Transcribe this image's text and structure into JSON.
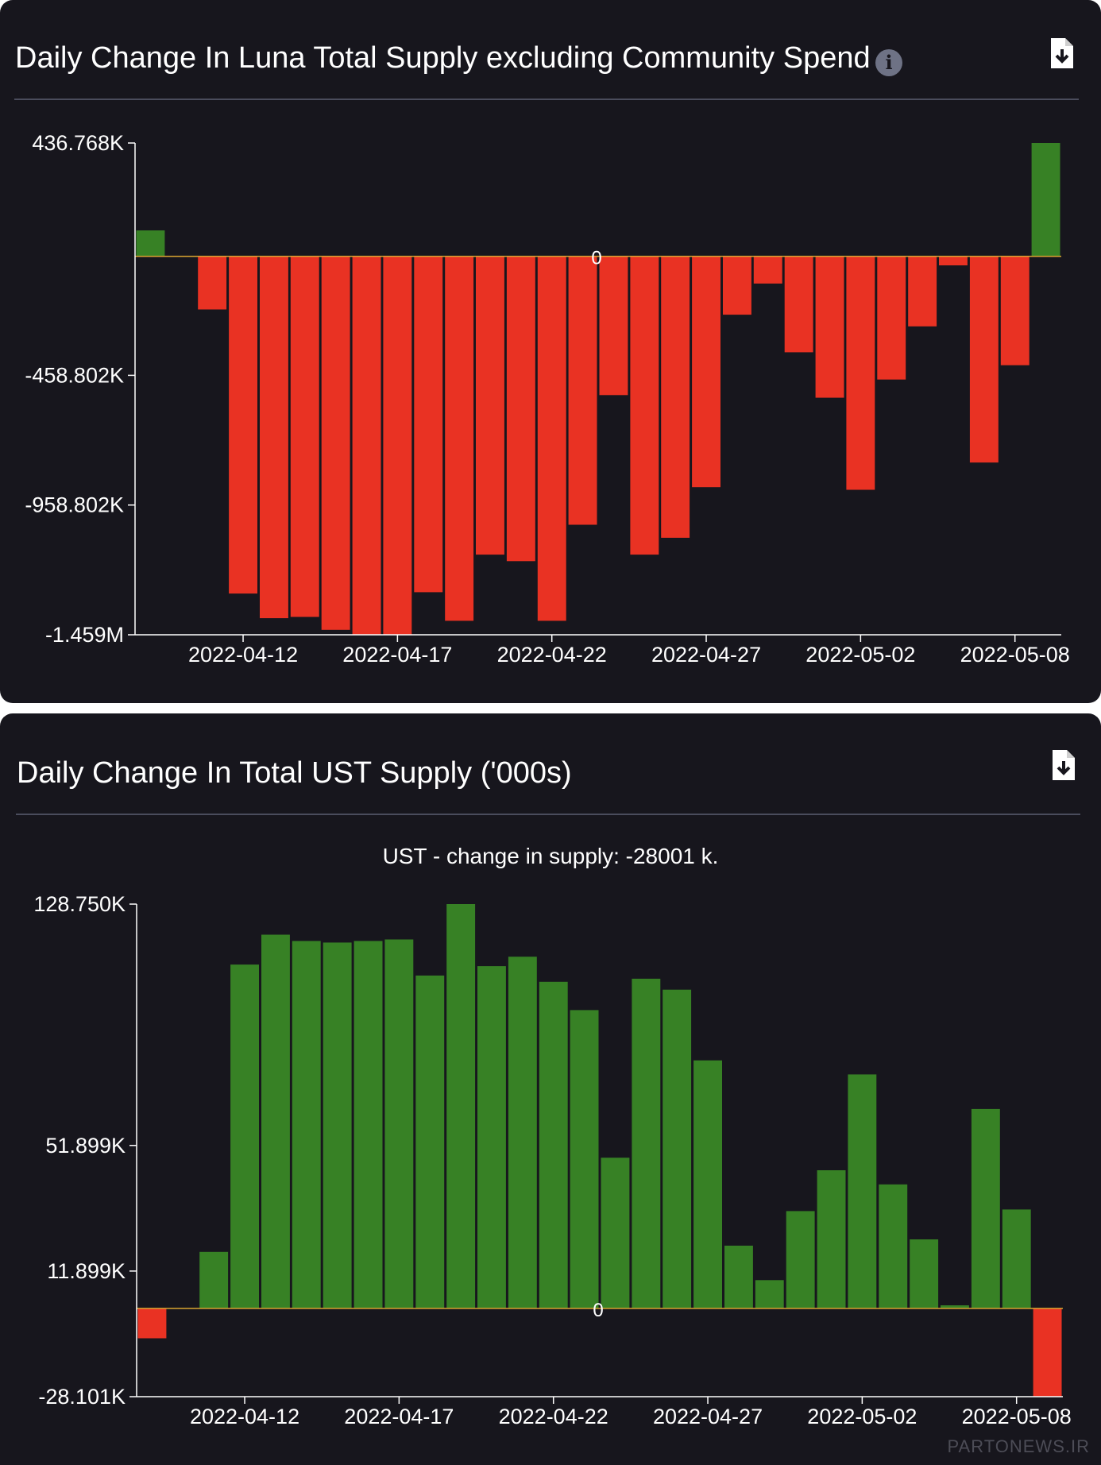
{
  "chart_data": [
    {
      "type": "bar",
      "title": "Daily Change In Luna Total Supply excluding Community Spend",
      "ylim": [
        -1459000,
        436768
      ],
      "y_ticks": [
        436768,
        -458802,
        -958802,
        -1459000
      ],
      "y_tick_labels": [
        "436.768K",
        "-458.802K",
        "-958.802K",
        "-1.459M"
      ],
      "zero_label": "0",
      "x_ticks": [
        "2022-04-12",
        "2022-04-17",
        "2022-04-22",
        "2022-04-27",
        "2022-05-02",
        "2022-05-08"
      ],
      "x_tick_index": [
        3.5,
        8.5,
        13.5,
        18.5,
        23.5,
        28.5
      ],
      "x": [
        "2022-04-09",
        "2022-04-10",
        "2022-04-11",
        "2022-04-12",
        "2022-04-13",
        "2022-04-14",
        "2022-04-15",
        "2022-04-16",
        "2022-04-17",
        "2022-04-18",
        "2022-04-19",
        "2022-04-20",
        "2022-04-21",
        "2022-04-22",
        "2022-04-23",
        "2022-04-24",
        "2022-04-25",
        "2022-04-26",
        "2022-04-27",
        "2022-04-28",
        "2022-04-29",
        "2022-04-30",
        "2022-05-01",
        "2022-05-02",
        "2022-05-03",
        "2022-05-04",
        "2022-05-05",
        "2022-05-06",
        "2022-05-07",
        "2022-05-08"
      ],
      "values": [
        100000,
        0,
        -205000,
        -1300000,
        -1395000,
        -1390000,
        -1440000,
        -1460000,
        -1460000,
        -1295000,
        -1405000,
        -1150000,
        -1175000,
        -1405000,
        -1035000,
        -535000,
        -1150000,
        -1085000,
        -890000,
        -225000,
        -105000,
        -370000,
        -545000,
        -900000,
        -475000,
        -270000,
        -35000,
        -795000,
        -420000,
        436768
      ],
      "colors": {
        "positive": "#378125",
        "negative": "#e93223",
        "zero_line": "#d9a431"
      }
    },
    {
      "type": "bar",
      "title": "Daily Change In Total UST Supply ('000s)",
      "subtitle": "UST - change in supply: -28001 k.",
      "ylim": [
        -28101,
        128750
      ],
      "y_ticks": [
        128750,
        51899,
        11899,
        -28101
      ],
      "y_tick_labels": [
        "128.750K",
        "51.899K",
        "11.899K",
        "-28.101K"
      ],
      "zero_label": "0",
      "x_ticks": [
        "2022-04-12",
        "2022-04-17",
        "2022-04-22",
        "2022-04-27",
        "2022-05-02",
        "2022-05-08"
      ],
      "x_tick_index": [
        3.5,
        8.5,
        13.5,
        18.5,
        23.5,
        28.5
      ],
      "x": [
        "2022-04-09",
        "2022-04-10",
        "2022-04-11",
        "2022-04-12",
        "2022-04-13",
        "2022-04-14",
        "2022-04-15",
        "2022-04-16",
        "2022-04-17",
        "2022-04-18",
        "2022-04-19",
        "2022-04-20",
        "2022-04-21",
        "2022-04-22",
        "2022-04-23",
        "2022-04-24",
        "2022-04-25",
        "2022-04-26",
        "2022-04-27",
        "2022-04-28",
        "2022-04-29",
        "2022-04-30",
        "2022-05-01",
        "2022-05-02",
        "2022-05-03",
        "2022-05-04",
        "2022-05-05",
        "2022-05-06",
        "2022-05-07",
        "2022-05-08"
      ],
      "values": [
        -9500,
        0,
        18000,
        109500,
        119000,
        117000,
        116500,
        117000,
        117500,
        106000,
        128750,
        109000,
        112000,
        104000,
        95000,
        48000,
        105000,
        101500,
        79000,
        20000,
        9000,
        31000,
        44000,
        74500,
        39500,
        22000,
        1000,
        63500,
        31500,
        -28000
      ],
      "colors": {
        "positive": "#378125",
        "negative": "#e93223",
        "zero_line": "#d9a431"
      }
    }
  ],
  "panels": [
    {
      "title": "Daily Change In Luna Total Supply excluding Community Spend",
      "info_icon": "info-icon",
      "download_icon": "download-file-icon"
    },
    {
      "title": "Daily Change In Total UST Supply ('000s)",
      "subtitle": "UST - change in supply: -28001 k.",
      "download_icon": "download-file-icon"
    }
  ],
  "watermark": "PARTONEWS.IR"
}
